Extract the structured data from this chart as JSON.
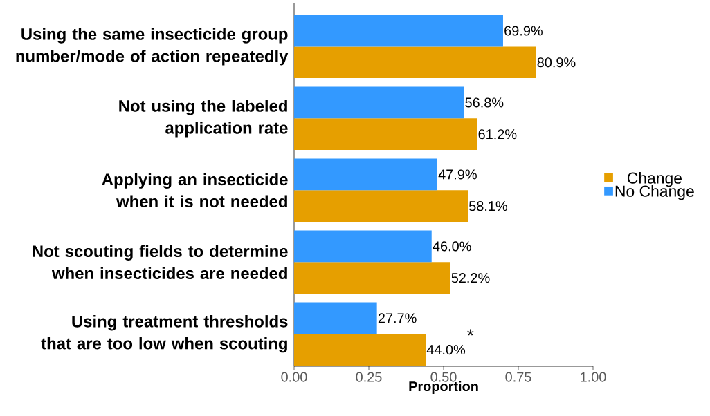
{
  "chart_data": {
    "type": "bar",
    "orientation": "horizontal",
    "xlabel": "Proportion",
    "categories": [
      "Using the same insecticide group number/mode of action repeatedly",
      "Not using the labeled application rate",
      "Applying an insecticide when it is not needed",
      "Not scouting fields to determine when insecticides are needed",
      "Using treatment thresholds that are too low when scouting"
    ],
    "series": [
      {
        "name": "Change",
        "color": "#e69f00",
        "values": [
          0.809,
          0.612,
          0.581,
          0.522,
          0.44
        ],
        "value_labels": [
          "80.9%",
          "61.2%",
          "58.1%",
          "52.2%",
          "44.0%"
        ]
      },
      {
        "name": "No Change",
        "color": "#3399ff",
        "values": [
          0.699,
          0.568,
          0.479,
          0.46,
          0.277
        ],
        "value_labels": [
          "69.9%",
          "56.8%",
          "47.9%",
          "46.0%",
          "27.7%"
        ]
      }
    ],
    "xlim": [
      0,
      1
    ],
    "xticks": [
      {
        "value": 0,
        "label": "0.00"
      },
      {
        "value": 0.25,
        "label": "0.25"
      },
      {
        "value": 0.5,
        "label": "0.50"
      },
      {
        "value": 0.75,
        "label": "0.75"
      },
      {
        "value": 1,
        "label": "1.00"
      }
    ],
    "legend": "right",
    "grid": false,
    "annotations": [
      "*"
    ]
  }
}
